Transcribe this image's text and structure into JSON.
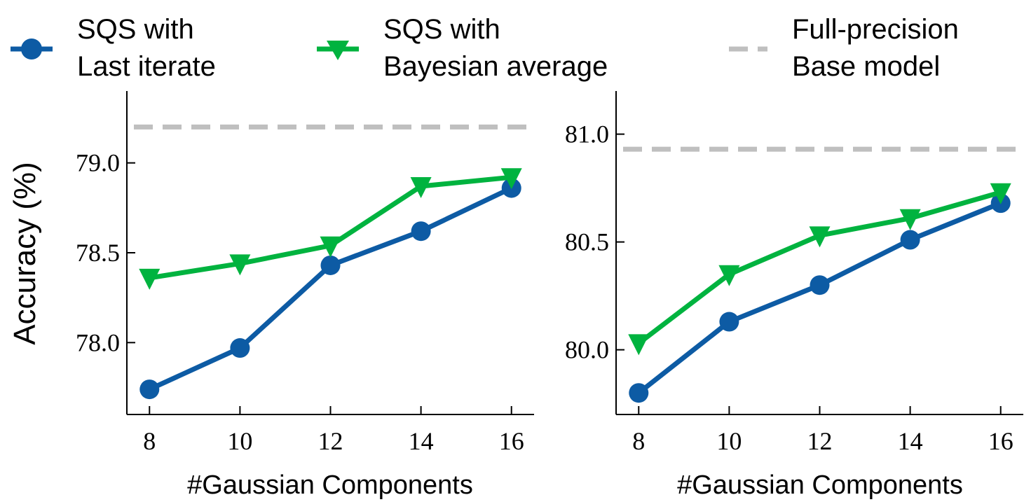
{
  "legend": {
    "items": [
      {
        "line1": "SQS with",
        "line2": "Last iterate",
        "color": "#0d5ba4",
        "marker": "circle"
      },
      {
        "line1": "SQS with",
        "line2": "Bayesian average",
        "color": "#00b33f",
        "marker": "triangle-down"
      },
      {
        "line1": "Full-precision",
        "line2": "Base model",
        "color": "#bfbfbf",
        "marker": "dashed"
      }
    ],
    "placement": "top"
  },
  "chart_data": [
    {
      "type": "line",
      "xlabel": "#Gaussian Components",
      "ylabel": "Accuracy (%)",
      "x": [
        8,
        10,
        12,
        14,
        16
      ],
      "xticks": [
        "8",
        "10",
        "12",
        "14",
        "16"
      ],
      "yticks": [
        "78.0",
        "78.5",
        "79.0"
      ],
      "ytick_values": [
        78.0,
        78.5,
        79.0
      ],
      "xlim": [
        7.5,
        16.5
      ],
      "ylim": [
        77.6,
        79.4
      ],
      "grid": false,
      "series": [
        {
          "name": "SQS with Last iterate",
          "values": [
            77.74,
            77.97,
            78.43,
            78.62,
            78.86
          ],
          "color": "#0d5ba4",
          "marker": "circle"
        },
        {
          "name": "SQS with Bayesian average",
          "values": [
            78.36,
            78.44,
            78.54,
            78.87,
            78.92
          ],
          "color": "#00b33f",
          "marker": "triangle-down"
        }
      ],
      "reference": {
        "name": "Full-precision Base model",
        "value": 79.2,
        "color": "#bfbfbf",
        "style": "dashed"
      }
    },
    {
      "type": "line",
      "xlabel": "#Gaussian Components",
      "ylabel": "",
      "x": [
        8,
        10,
        12,
        14,
        16
      ],
      "xticks": [
        "8",
        "10",
        "12",
        "14",
        "16"
      ],
      "yticks": [
        "80.0",
        "80.5",
        "81.0"
      ],
      "ytick_values": [
        80.0,
        80.5,
        81.0
      ],
      "xlim": [
        7.5,
        16.5
      ],
      "ylim": [
        79.7,
        81.2
      ],
      "grid": false,
      "series": [
        {
          "name": "SQS with Last iterate",
          "values": [
            79.8,
            80.13,
            80.3,
            80.51,
            80.68
          ],
          "color": "#0d5ba4",
          "marker": "circle"
        },
        {
          "name": "SQS with Bayesian average",
          "values": [
            80.03,
            80.35,
            80.53,
            80.61,
            80.73
          ],
          "color": "#00b33f",
          "marker": "triangle-down"
        }
      ],
      "reference": {
        "name": "Full-precision Base model",
        "value": 80.93,
        "color": "#bfbfbf",
        "style": "dashed"
      }
    }
  ]
}
